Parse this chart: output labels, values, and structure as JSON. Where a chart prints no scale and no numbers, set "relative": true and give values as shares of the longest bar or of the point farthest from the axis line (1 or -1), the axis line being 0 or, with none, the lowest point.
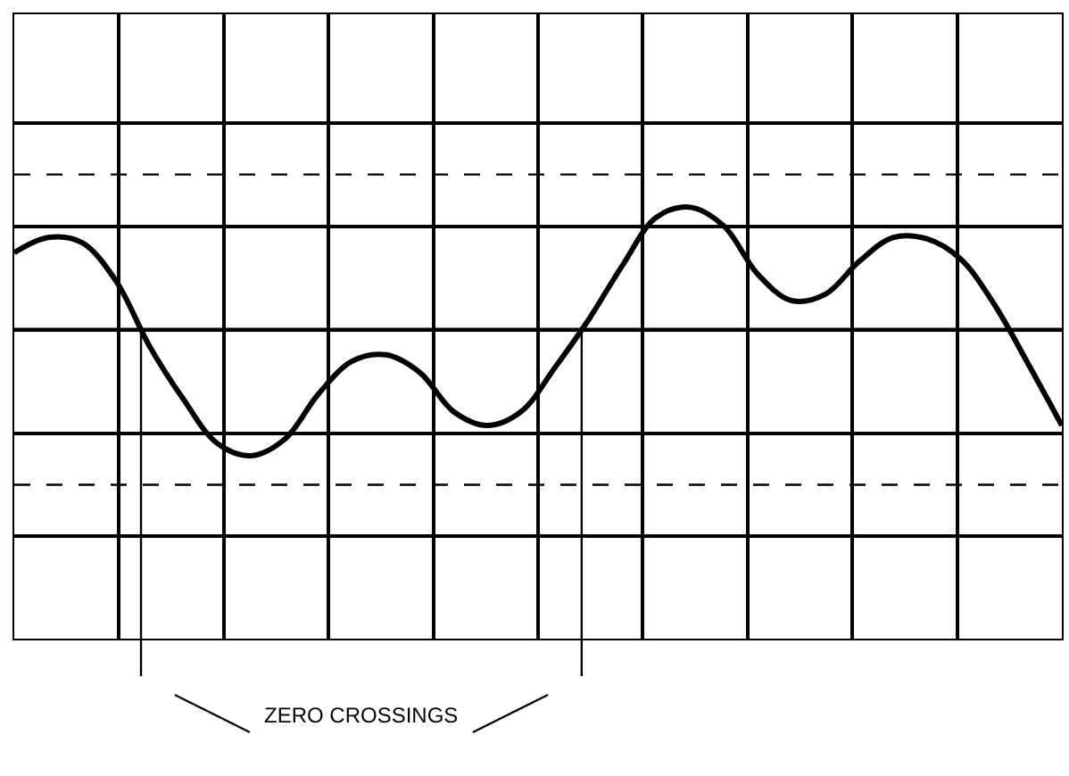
{
  "chart_data": {
    "type": "line",
    "relative": true,
    "color": "#000000",
    "grid": true,
    "marker": "none",
    "line_style": "solid",
    "categories": [
      null,
      null,
      null,
      null,
      null,
      null,
      null,
      null,
      null,
      null,
      null,
      null,
      null,
      null,
      null,
      null,
      null,
      null,
      null,
      null,
      null,
      null,
      null,
      null,
      null,
      null,
      null,
      null,
      null,
      null,
      null,
      null
    ],
    "values": [
      0.61,
      0.73,
      0.69,
      0.39,
      -0.13,
      -0.55,
      -0.9,
      -1,
      -0.87,
      -0.51,
      -0.25,
      -0.2,
      -0.34,
      -0.65,
      -0.76,
      -0.65,
      -0.3,
      0.08,
      0.51,
      0.89,
      0.97,
      0.82,
      0.44,
      0.23,
      0.28,
      0.54,
      0.73,
      0.72,
      0.56,
      0.2,
      -0.27,
      -0.76
    ],
    "annotations": [
      "ZERO CROSSINGS"
    ]
  }
}
